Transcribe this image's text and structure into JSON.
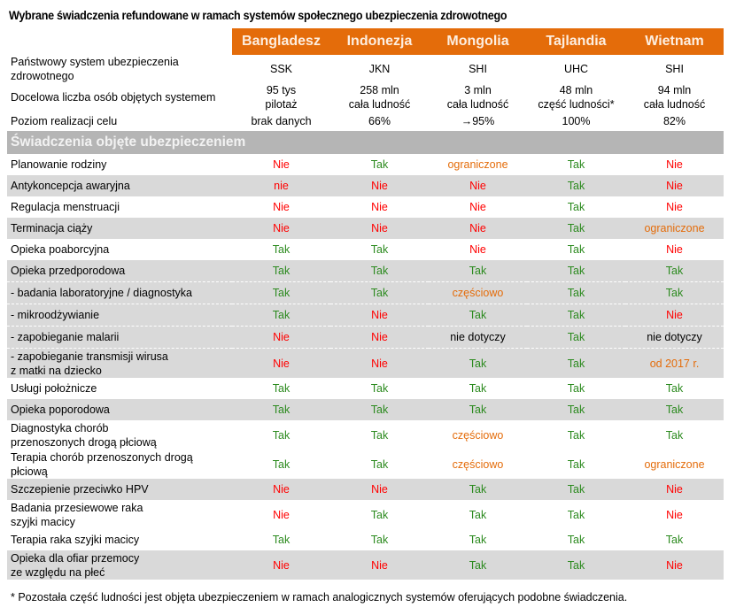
{
  "title": "Wybrane świadczenia refundowane w ramach systemów społecznego ubezpieczenia zdrowotnego",
  "colors": {
    "header": "#E46C0A",
    "yes": "#2B8A1E",
    "no": "#FF0000",
    "partial": "#E46C0A",
    "section": "#B5B5B5",
    "stripe": "#D9D9D9"
  },
  "countries": [
    "Bangladesz",
    "Indonezja",
    "Mongolia",
    "Tajlandia",
    "Wietnam"
  ],
  "info_rows": [
    {
      "label": "Państwowy system ubezpieczenia zdrowotnego",
      "values": [
        "SSK",
        "JKN",
        "SHI",
        "UHC",
        "SHI"
      ]
    },
    {
      "label": "Docelowa liczba osób objętych systemem",
      "values": [
        "95 tys\npilotaż",
        "258 mln\ncała ludność",
        "3 mln\ncała ludność",
        "48 mln\nczęść ludności*",
        "94 mln\ncała ludność"
      ]
    },
    {
      "label": "Poziom realizacji celu",
      "values": [
        "brak danych",
        "66%",
        "→95%",
        "100%",
        "82%"
      ]
    }
  ],
  "section_title": "Świadczenia objęte ubezpieczeniem",
  "benefits": [
    {
      "label": "Planowanie rodziny",
      "values": [
        "Nie",
        "Tak",
        "ograniczone",
        "Tak",
        "Nie"
      ]
    },
    {
      "label": "Antykoncepcja awaryjna",
      "values": [
        "nie",
        "Nie",
        "Nie",
        "Tak",
        "Nie"
      ]
    },
    {
      "label": "Regulacja menstruacji",
      "values": [
        "Nie",
        "Nie",
        "Nie",
        "Tak",
        "Nie"
      ]
    },
    {
      "label": "Terminacja ciąży",
      "values": [
        "Nie",
        "Nie",
        "Nie",
        "Tak",
        "ograniczone"
      ]
    },
    {
      "label": "Opieka poaborcyjna",
      "values": [
        "Tak",
        "Tak",
        "Nie",
        "Tak",
        "Nie"
      ]
    },
    {
      "label": "Opieka przedporodowa",
      "values": [
        "Tak",
        "Tak",
        "Tak",
        "Tak",
        "Tak"
      ]
    },
    {
      "label": "- badania laboratoryjne / diagnostyka",
      "values": [
        "Tak",
        "Tak",
        "częściowo",
        "Tak",
        "Tak"
      ]
    },
    {
      "label": "- mikroodżywianie",
      "values": [
        "Tak",
        "Nie",
        "Tak",
        "Tak",
        "Nie"
      ]
    },
    {
      "label": "- zapobieganie malarii",
      "values": [
        "Nie",
        "Nie",
        "nie dotyczy",
        "Tak",
        "nie dotyczy"
      ]
    },
    {
      "label": "- zapobieganie transmisji wirusa\nz matki na  dziecko",
      "values": [
        "Nie",
        "Nie",
        "Tak",
        "Tak",
        "od 2017 r."
      ]
    },
    {
      "label": "Usługi położnicze",
      "values": [
        "Tak",
        "Tak",
        "Tak",
        "Tak",
        "Tak"
      ]
    },
    {
      "label": "Opieka poporodowa",
      "values": [
        "Tak",
        "Tak",
        "Tak",
        "Tak",
        "Tak"
      ]
    },
    {
      "label": "Diagnostyka chorób\nprzenoszonych drogą płciową",
      "values": [
        "Tak",
        "Tak",
        "częściowo",
        "Tak",
        "Tak"
      ]
    },
    {
      "label": "Terapia chorób przenoszonych drogą\npłciową",
      "values": [
        "Tak",
        "Tak",
        "częściowo",
        "Tak",
        "ograniczone"
      ]
    },
    {
      "label": "Szczepienie przeciwko HPV",
      "values": [
        "Nie",
        "Nie",
        "Tak",
        "Tak",
        "Nie"
      ]
    },
    {
      "label": "Badania przesiewowe raka\nszyjki macicy",
      "values": [
        "Nie",
        "Tak",
        "Tak",
        "Tak",
        "Nie"
      ]
    },
    {
      "label": "Terapia raka szyjki macicy",
      "values": [
        "Tak",
        "Tak",
        "Tak",
        "Tak",
        "Tak"
      ]
    },
    {
      "label": "Opieka dla ofiar przemocy\nze względu na płeć",
      "values": [
        "Nie",
        "Nie",
        "Tak",
        "Tak",
        "Nie"
      ]
    }
  ],
  "footnote": "* Pozostała część ludności jest objęta ubezpieczeniem w ramach analogicznych systemów oferujących podobne świadczenia."
}
